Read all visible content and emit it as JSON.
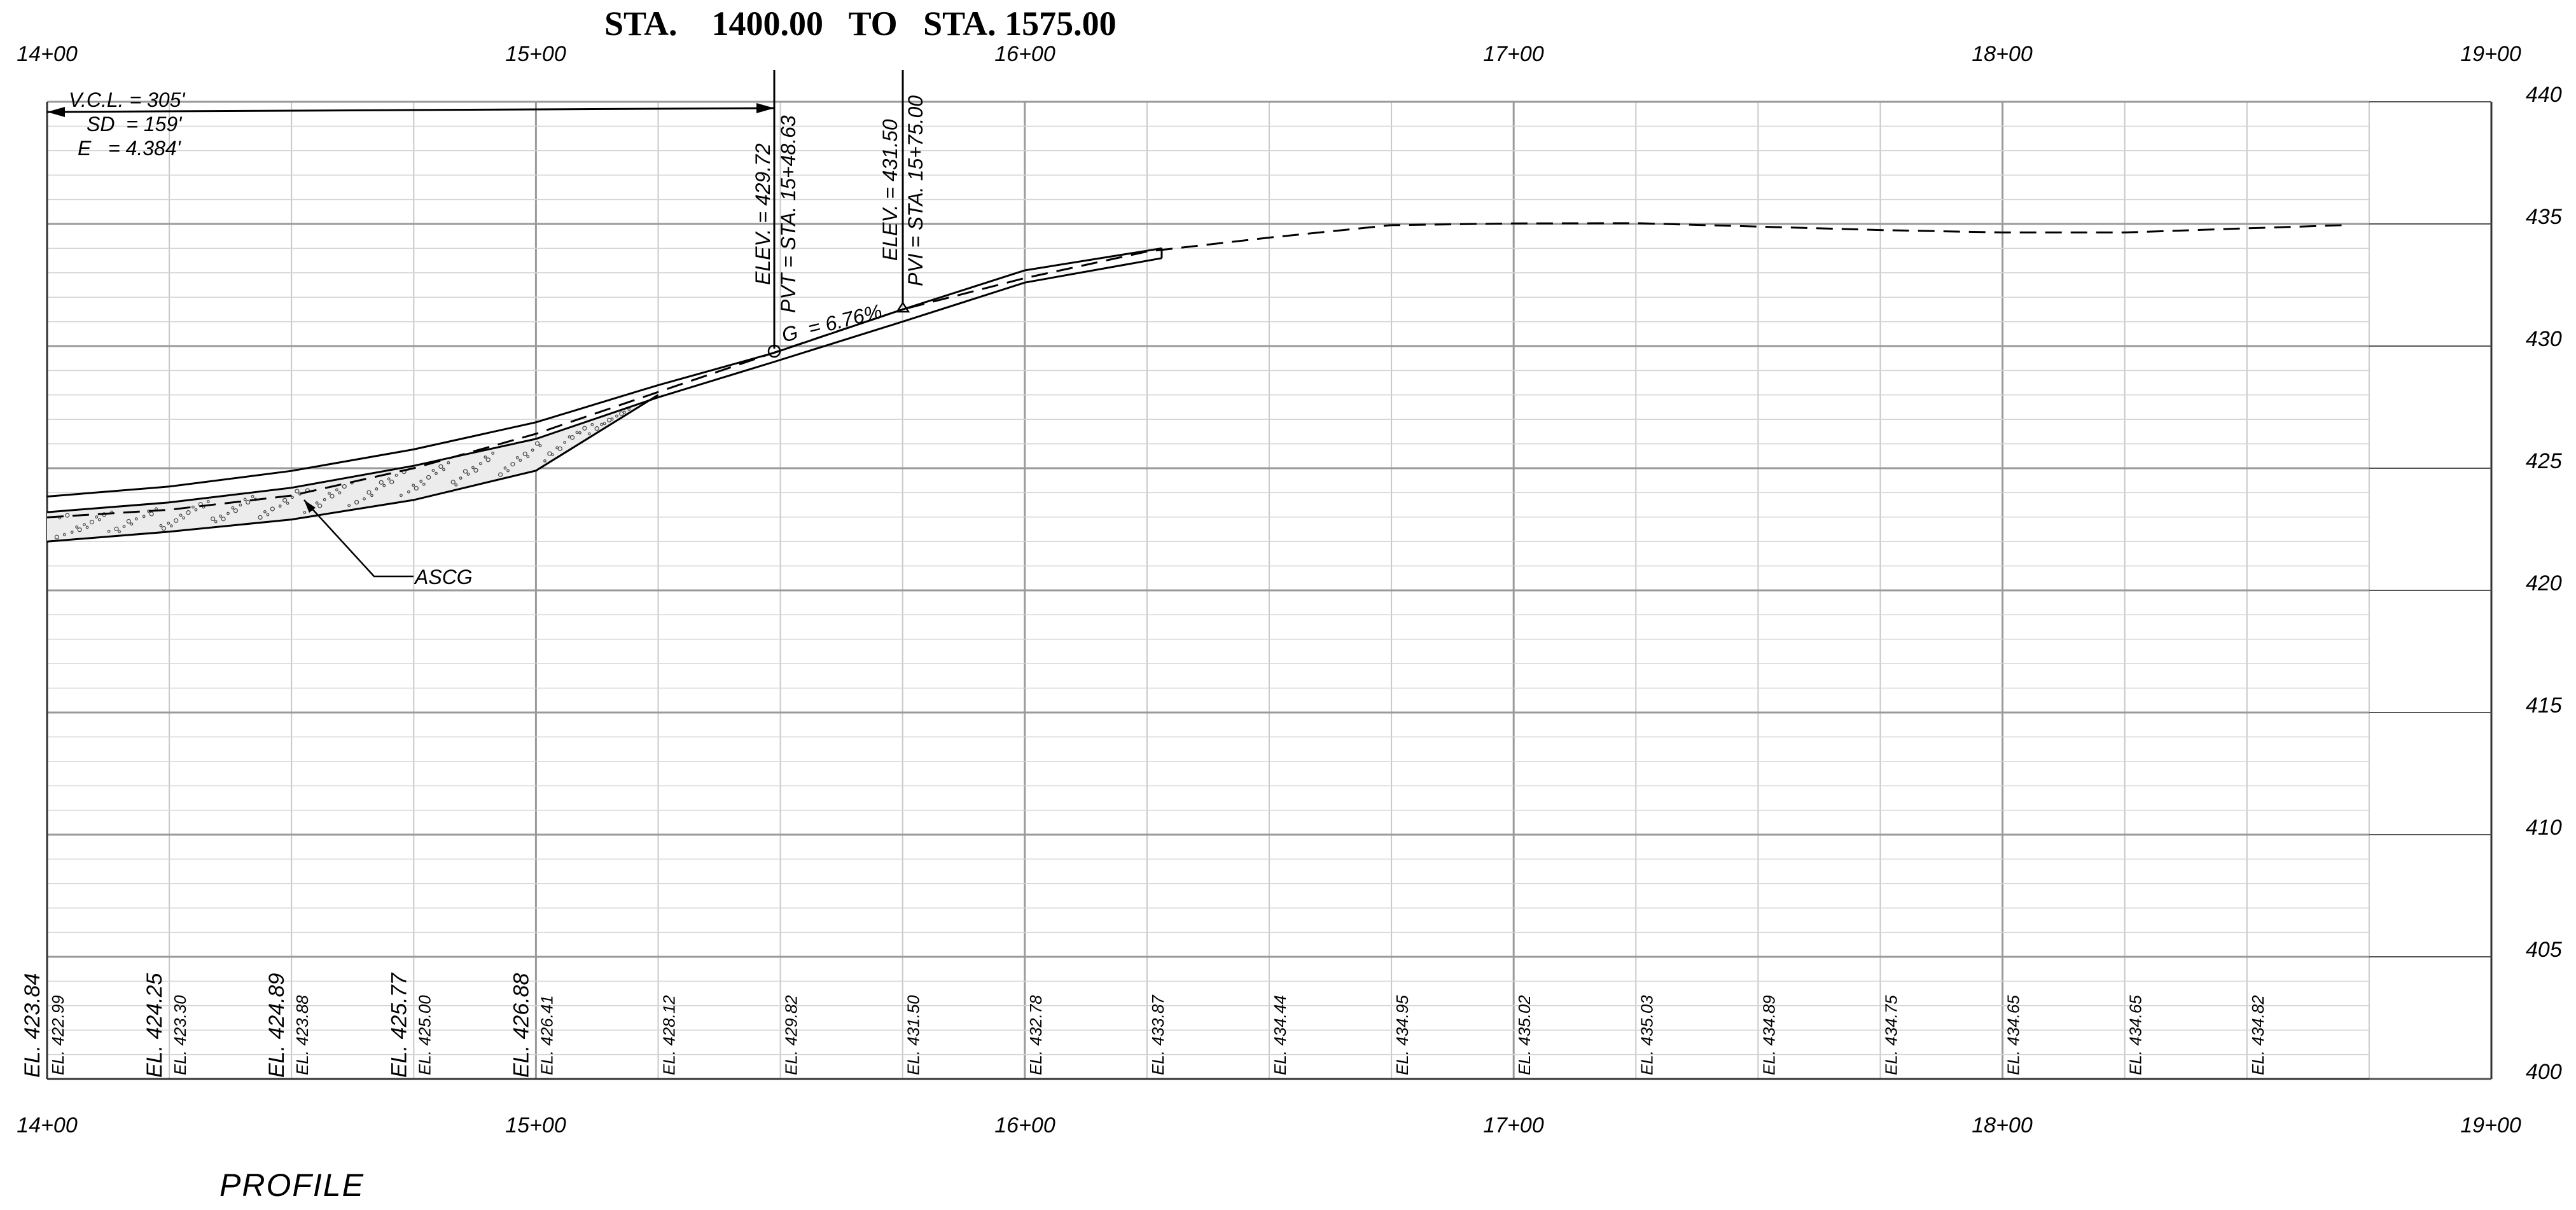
{
  "title": "STA.    1400.00   TO   STA. 1575.00",
  "caption": "PROFILE",
  "station_labels": [
    "14+00",
    "15+00",
    "16+00",
    "17+00",
    "18+00",
    "19+00"
  ],
  "elevation_labels": [
    "440",
    "435",
    "430",
    "425",
    "420",
    "415",
    "410",
    "405",
    "400"
  ],
  "curve_data": {
    "vcl": "V.C.L. = 305'",
    "sd": "SD  = 159'",
    "e": "E   = 4.384'"
  },
  "pvt": {
    "elev": "ELEV. = 429.72",
    "sta": "PVT = STA. 15+48.63"
  },
  "pvi": {
    "elev": "ELEV. = 431.50",
    "sta": "PVI = STA. 15+75.00"
  },
  "grade": "G  = 6.76%",
  "ascg_label": "ASCG",
  "design_elevations": [
    {
      "label": "EL. 423.84",
      "station": 1400
    },
    {
      "label": "EL. 424.25",
      "station": 1425
    },
    {
      "label": "EL. 424.89",
      "station": 1450
    },
    {
      "label": "EL. 425.77",
      "station": 1475
    },
    {
      "label": "EL. 426.88",
      "station": 1500
    }
  ],
  "existing_elevations": [
    {
      "label": "EL. 422.99",
      "station": 1400
    },
    {
      "label": "EL. 423.30",
      "station": 1425
    },
    {
      "label": "EL. 423.88",
      "station": 1450
    },
    {
      "label": "EL. 425.00",
      "station": 1475
    },
    {
      "label": "EL. 426.41",
      "station": 1500
    },
    {
      "label": "EL. 428.12",
      "station": 1525
    },
    {
      "label": "EL. 429.82",
      "station": 1550
    },
    {
      "label": "EL. 431.50",
      "station": 1575
    },
    {
      "label": "EL. 432.78",
      "station": 1600
    },
    {
      "label": "EL. 433.87",
      "station": 1625
    },
    {
      "label": "EL. 434.44",
      "station": 1650
    },
    {
      "label": "EL. 434.95",
      "station": 1675
    },
    {
      "label": "EL. 435.02",
      "station": 1700
    },
    {
      "label": "EL. 435.03",
      "station": 1725
    },
    {
      "label": "EL. 434.89",
      "station": 1750
    },
    {
      "label": "EL. 434.75",
      "station": 1775
    },
    {
      "label": "EL. 434.65",
      "station": 1800
    },
    {
      "label": "EL. 434.65",
      "station": 1825
    },
    {
      "label": "EL. 434.82",
      "station": 1850
    }
  ],
  "profile": {
    "design_top": [
      [
        1400,
        423.84
      ],
      [
        1425,
        424.25
      ],
      [
        1450,
        424.89
      ],
      [
        1475,
        425.77
      ],
      [
        1500,
        426.88
      ],
      [
        1525,
        428.4
      ],
      [
        1548.63,
        429.72
      ],
      [
        1575,
        431.5
      ],
      [
        1600,
        433.1
      ],
      [
        1628,
        434.0
      ]
    ],
    "design_bottom": [
      [
        1400,
        423.2
      ],
      [
        1425,
        423.6
      ],
      [
        1450,
        424.2
      ],
      [
        1475,
        425.1
      ],
      [
        1500,
        426.2
      ],
      [
        1525,
        427.9
      ],
      [
        1548.63,
        429.35
      ],
      [
        1575,
        431.0
      ],
      [
        1600,
        432.6
      ],
      [
        1628,
        433.6
      ]
    ],
    "existing": [
      [
        1400,
        422.99
      ],
      [
        1425,
        423.3
      ],
      [
        1450,
        423.88
      ],
      [
        1475,
        425.0
      ],
      [
        1500,
        426.41
      ],
      [
        1525,
        428.12
      ],
      [
        1550,
        429.82
      ],
      [
        1575,
        431.5
      ],
      [
        1600,
        432.78
      ],
      [
        1625,
        433.87
      ],
      [
        1650,
        434.44
      ],
      [
        1675,
        434.95
      ],
      [
        1700,
        435.02
      ],
      [
        1725,
        435.03
      ],
      [
        1750,
        434.89
      ],
      [
        1775,
        434.75
      ],
      [
        1800,
        434.65
      ],
      [
        1825,
        434.65
      ],
      [
        1850,
        434.82
      ],
      [
        1870,
        434.95
      ]
    ],
    "ascg_bottom": [
      [
        1400,
        422.0
      ],
      [
        1425,
        422.4
      ],
      [
        1450,
        422.9
      ],
      [
        1475,
        423.7
      ],
      [
        1500,
        424.9
      ],
      [
        1525,
        428.0
      ]
    ]
  }
}
